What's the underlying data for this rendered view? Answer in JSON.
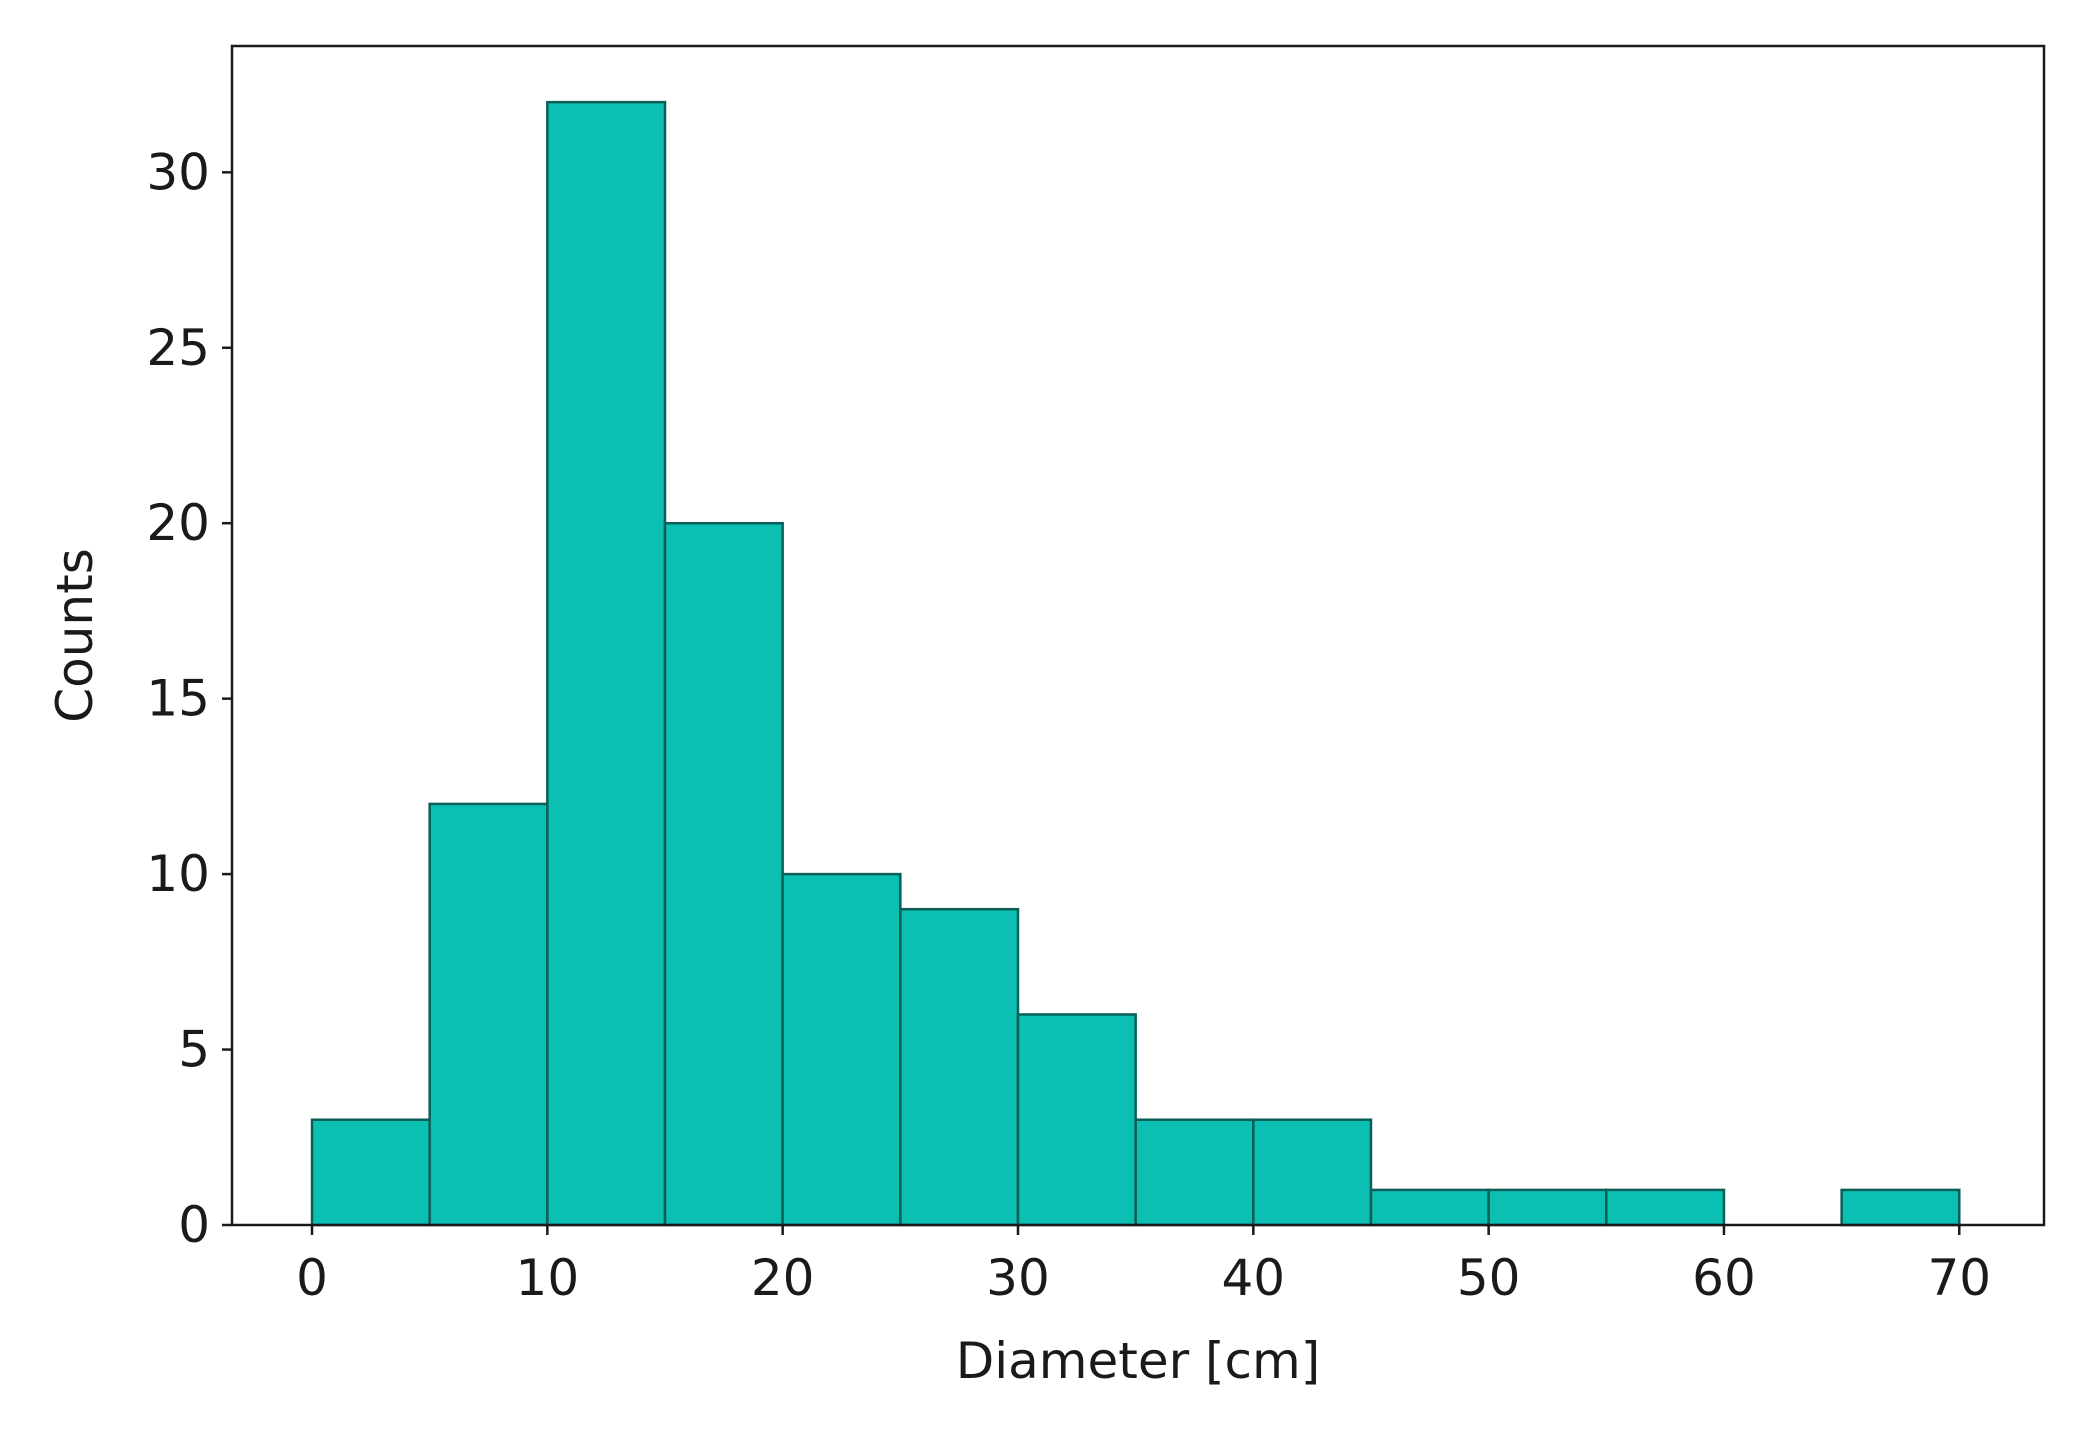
{
  "chart_data": {
    "type": "bar",
    "subtype": "histogram",
    "xlabel": "Diameter [cm]",
    "ylabel": "Counts",
    "xlim": [
      -3.4,
      73.6
    ],
    "ylim": [
      0,
      33.6
    ],
    "bin_width": 5,
    "bin_edges": [
      0,
      5,
      10,
      15,
      20,
      25,
      30,
      35,
      40,
      45,
      50,
      55,
      60,
      65,
      70
    ],
    "values": [
      3,
      12,
      32,
      20,
      10,
      9,
      6,
      3,
      3,
      1,
      1,
      1,
      0,
      1
    ],
    "x_ticks": [
      0,
      10,
      20,
      30,
      40,
      50,
      60,
      70
    ],
    "x_tick_labels": [
      "0",
      "10",
      "20",
      "30",
      "40",
      "50",
      "60",
      "70"
    ],
    "y_ticks": [
      0,
      5,
      10,
      15,
      20,
      25,
      30
    ],
    "y_tick_labels": [
      "0",
      "5",
      "10",
      "15",
      "20",
      "25",
      "30"
    ],
    "grid": false,
    "bar_color": "#0cbfb3",
    "bar_edge_color": "#0b5e57"
  }
}
